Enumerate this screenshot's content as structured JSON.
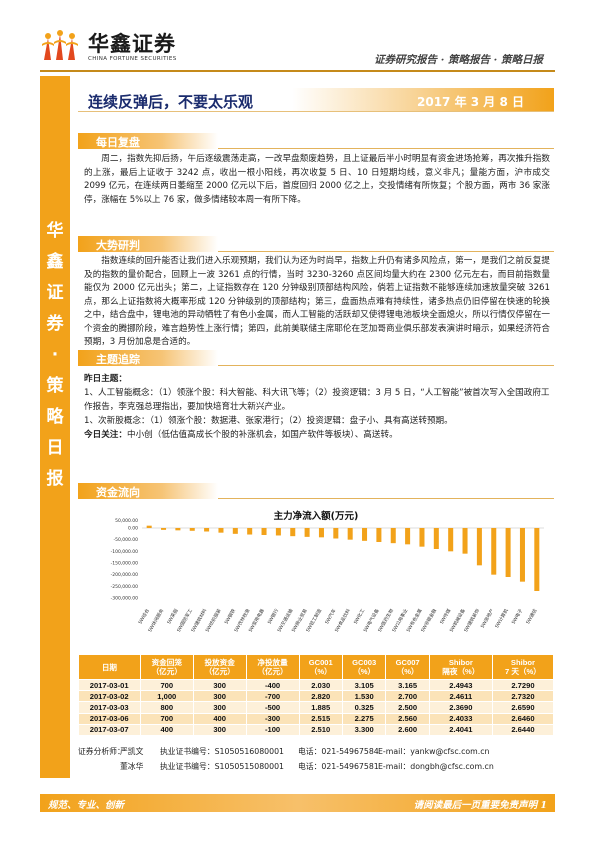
{
  "header": {
    "logo_cn": "华鑫证券",
    "logo_en": "CHINA FORTUNE SECURITIES",
    "path": "证券研究报告 · 策略报告 · 策略日报",
    "side_band": "华鑫证券·策略日报"
  },
  "report": {
    "title": "连续反弹后，不要太乐观",
    "date": "2017 年 3 月 8 日"
  },
  "sections": {
    "review": {
      "label": "每日复盘",
      "text": "周二，指数先抑后扬，午后逐级震荡走高，一改早盘颓废趋势，且上证最后半小时明显有资金进场抢筹，再次推升指数的上涨，最后上证收于 3242 点，收出一根小阳线，再次收复 5 日、10 日短期均线，意义非凡；量能方面，沪市成交 2099 亿元，在连续两日萎缩至 2000 亿元以下后，首度回归 2000 亿之上，交投情绪有所恢复；个股方面，两市 36 家涨停，涨幅在 5%以上 76 家，做多情绪较本周一有所下降。"
    },
    "outlook": {
      "label": "大势研判",
      "text": "指数连续的回升能否让我们进入乐观预期，我们认为还为时尚早，指数上升仍有诸多风险点，第一，是我们之前反复提及的指数的量价配合，回顾上一波 3261 点的行情，当时 3230-3260 点区间均量大约在 2300 亿元左右，而目前指数量能仅为 2000 亿元出头；第二，上证指数存在 120 分钟级别顶部结构风险，倘若上证指数不能够连续加速放量突破 3261 点，那么上证指数将大概率形成 120 分钟级别的顶部结构；第三，盘面热点难有持续性，诸多热点仍旧停留在快速的轮换之中，结合盘中，锂电池的异动牺牲了有色小金属，而人工智能的活跃却又使得锂电池板块全面熄火，所以行情仅停留在一个资金的腾挪阶段，难言趋势性上涨行情；第四，此前美联储主席耶伦在芝加哥商业俱乐部发表演讲时暗示，如果经济符合预期，3 月份加息是合适的。"
    },
    "themes": {
      "label": "主题追踪",
      "yesterday_label": "昨日主题：",
      "item1": "1、人工智能概念：（1）领涨个股：科大智能、科大讯飞等；（2）投资逻辑：3 月 5 日，“人工智能”被首次写入全国政府工作报告，李克强总理指出，要加快培育壮大新兴产业。",
      "item2": "1、次新股概念：（1）领涨个股：数据港、张家港行；（2）投资逻辑：盘子小、具有高送转预期。",
      "today_label": "今日关注：",
      "today_text": "中小创（低估值高成长个股的补涨机会，如国产软件等板块）、高送转。"
    },
    "capital": {
      "label": "资金流向"
    }
  },
  "chart_data": {
    "type": "bar",
    "title": "主力净流入额(万元)",
    "ylim": [
      -300000,
      100000
    ],
    "ytick_labels": [
      "0.00",
      "-50,000.00",
      "-100,000.00",
      "-150,000.00",
      "-200,000.00",
      "-250,000.00",
      "-300,000.00"
    ],
    "ytick_values": [
      0,
      -50000,
      -100000,
      -150000,
      -200000,
      -250000,
      -300000
    ],
    "top_label": "50,000.00",
    "categories": [
      "SW综合",
      "SW休闲服务",
      "SW采掘",
      "SW国防军工",
      "SW建筑材料",
      "SW纺织服装",
      "SW钢铁",
      "SW农林牧渔",
      "SW家用电器",
      "SW银行",
      "SW交通运输",
      "SW商业贸易",
      "SW轻工制造",
      "SW汽车",
      "SW食品饮料",
      "SW化工",
      "SW电气设备",
      "SW医药生物",
      "SW公用事业",
      "SW有色金属",
      "SW非银金融",
      "SW传媒",
      "SW机械设备",
      "SW建筑装饰",
      "SW房地产",
      "SW计算机",
      "SW电子",
      "SW通信"
    ],
    "values": [
      10000,
      -8000,
      -10000,
      -12000,
      -15000,
      -20000,
      -25000,
      -28000,
      -30000,
      -32000,
      -35000,
      -38000,
      -40000,
      -45000,
      -50000,
      -55000,
      -60000,
      -65000,
      -70000,
      -80000,
      -90000,
      -100000,
      -110000,
      -160000,
      -200000,
      -210000,
      -230000,
      -270000
    ],
    "bar_color": "#f2a21a"
  },
  "table": {
    "headers": [
      "日期",
      "资金回笼\n（亿元）",
      "投放资金\n（亿元）",
      "净投放量\n（亿元）",
      "GC001\n（%）",
      "GC003\n（%）",
      "GC007\n（%）",
      "Shibor\n隔夜（%）",
      "Shibor\n7 天（%）"
    ],
    "rows": [
      [
        "2017-03-01",
        "700",
        "300",
        "-400",
        "2.030",
        "3.105",
        "3.165",
        "2.4943",
        "2.7290"
      ],
      [
        "2017-03-02",
        "1,000",
        "300",
        "-700",
        "2.820",
        "1.530",
        "2.700",
        "2.4611",
        "2.7320"
      ],
      [
        "2017-03-03",
        "800",
        "300",
        "-500",
        "1.885",
        "0.325",
        "2.500",
        "2.3690",
        "2.6590"
      ],
      [
        "2017-03-06",
        "700",
        "400",
        "-300",
        "2.515",
        "2.275",
        "2.560",
        "2.4033",
        "2.6460"
      ],
      [
        "2017-03-07",
        "400",
        "300",
        "-100",
        "2.510",
        "3.300",
        "2.600",
        "2.4041",
        "2.6440"
      ]
    ]
  },
  "contacts": [
    {
      "role": "证券分析师：",
      "name": "严凯文",
      "cert": "执业证书编号：S1050516080001",
      "tel": "电话：021-54967584",
      "email": "E-mail：yankw@cfsc.com.cn"
    },
    {
      "role": "",
      "name": "董冰华",
      "cert": "执业证书编号：S1050515080001",
      "tel": "电话：021-54967581",
      "email": "E-mail：dongbh@cfsc.com.cn"
    }
  ],
  "footer": {
    "left": "规范、专业、创新",
    "right": "请阅读最后一页重要免责声明 1"
  },
  "colors": {
    "accent": "#f2a21a",
    "title": "#1a2b6d"
  }
}
